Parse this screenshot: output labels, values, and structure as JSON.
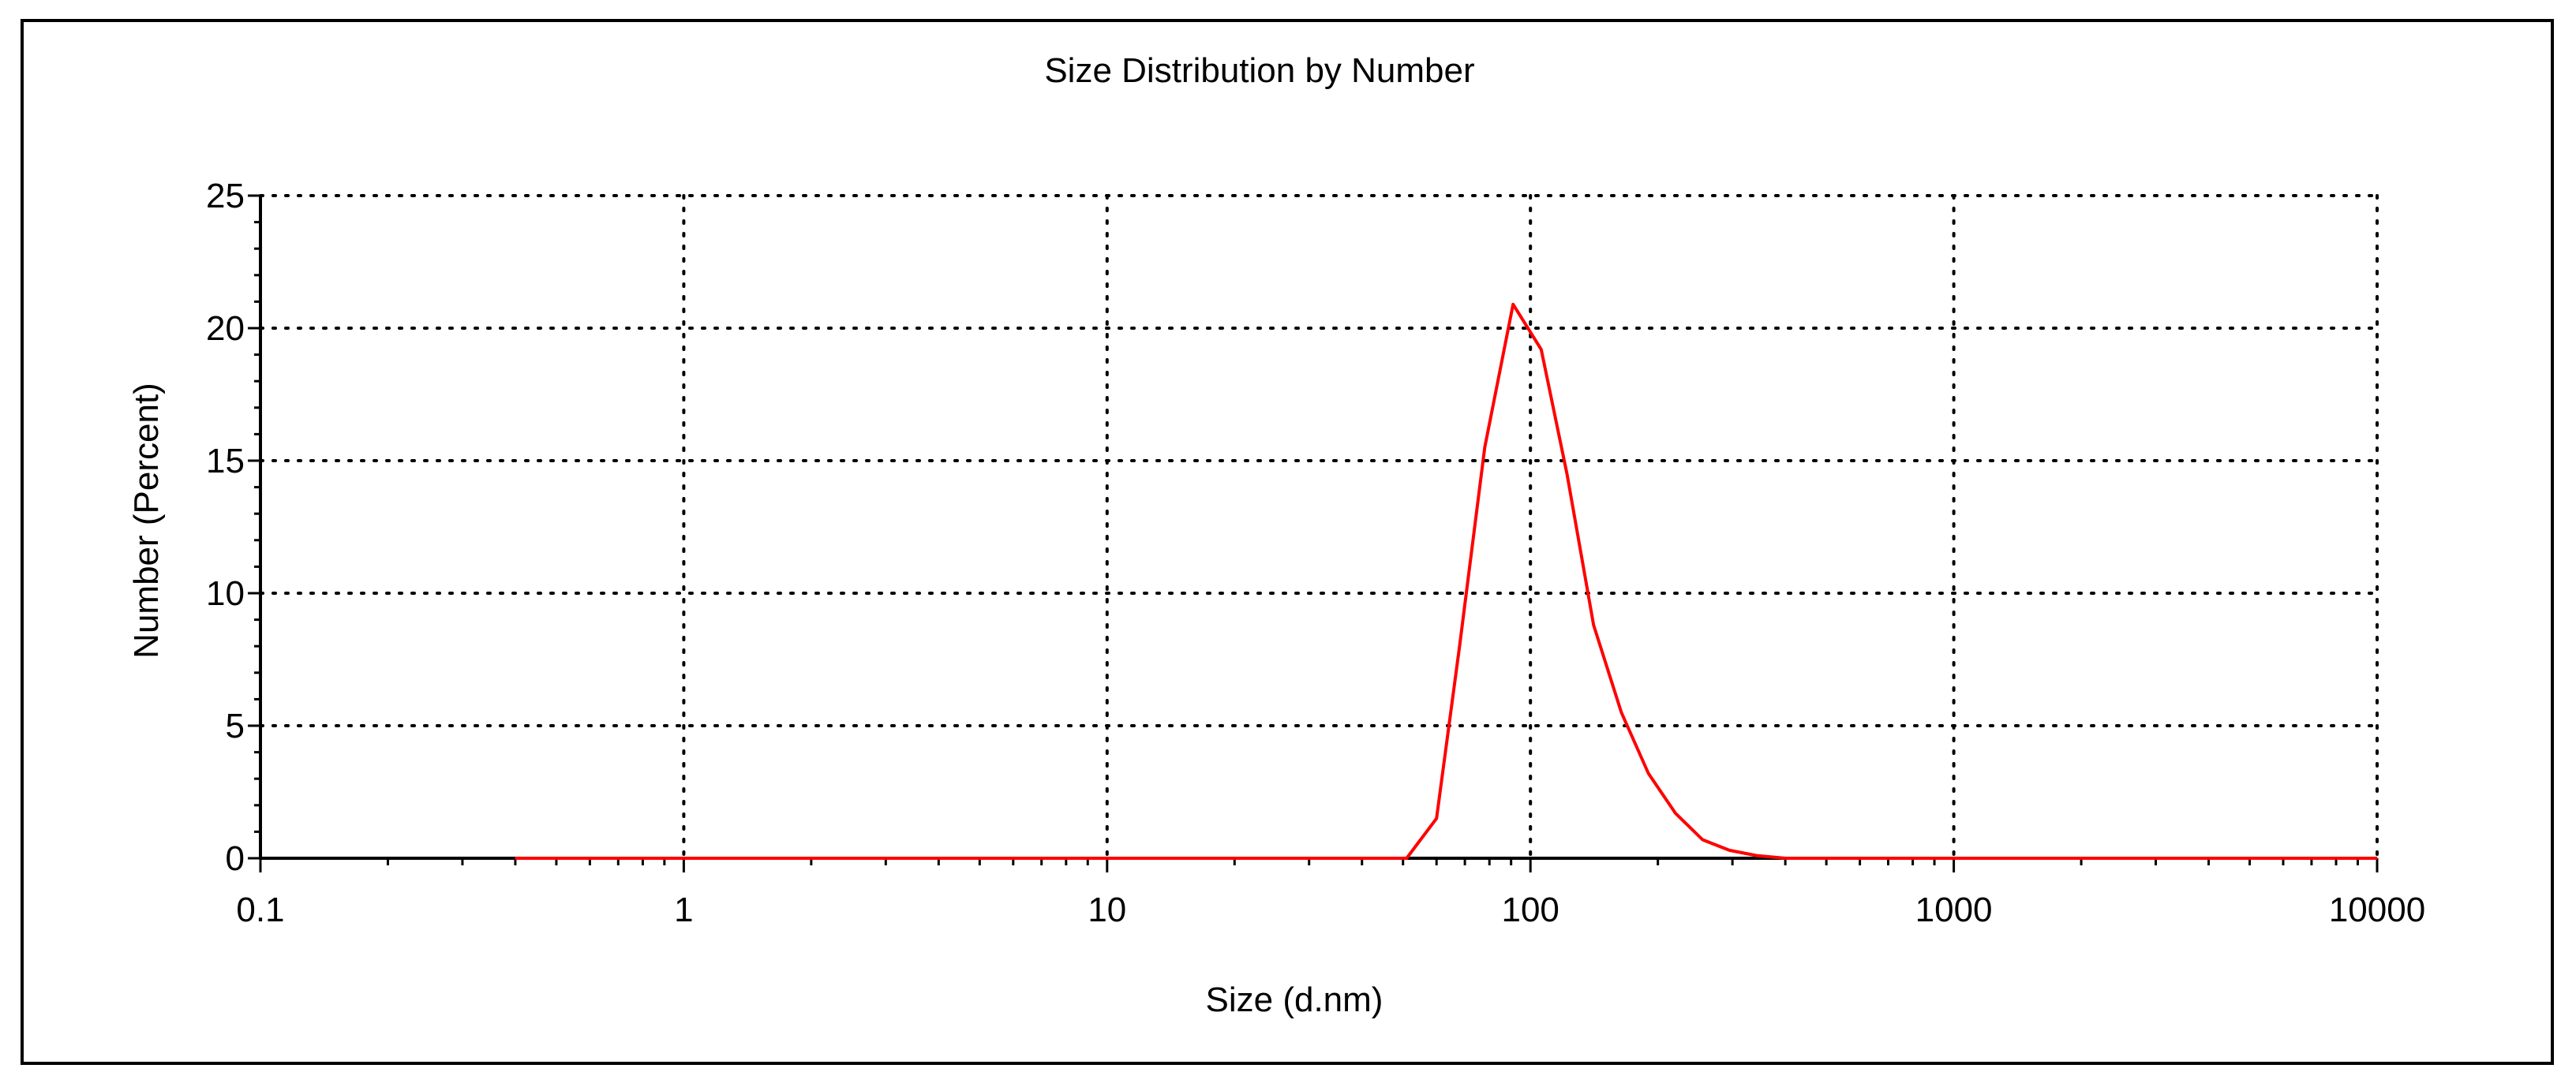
{
  "chart_data": {
    "type": "line",
    "title": "Size Distribution by Number",
    "xlabel": "Size (d.nm)",
    "ylabel": "Number (Percent)",
    "x_scale": "log",
    "xlim": [
      0.1,
      10000
    ],
    "ylim": [
      0,
      25
    ],
    "x_ticks": [
      "0.1",
      "1",
      "10",
      "100",
      "1000",
      "10000"
    ],
    "y_ticks": [
      "0",
      "5",
      "10",
      "15",
      "20",
      "25"
    ],
    "grid": true,
    "legend": "none",
    "series": [
      {
        "color": "#ff0000",
        "x": [
          0.4,
          1,
          10,
          51,
          60,
          68,
          78,
          91,
          106,
          122,
          141,
          164,
          190,
          220,
          255,
          295,
          342,
          400,
          1000,
          10000
        ],
        "y": [
          0,
          0,
          0,
          0,
          1.5,
          8,
          15.5,
          20.9,
          19.2,
          14.5,
          8.8,
          5.5,
          3.2,
          1.7,
          0.7,
          0.3,
          0.1,
          0,
          0,
          0
        ]
      }
    ]
  }
}
